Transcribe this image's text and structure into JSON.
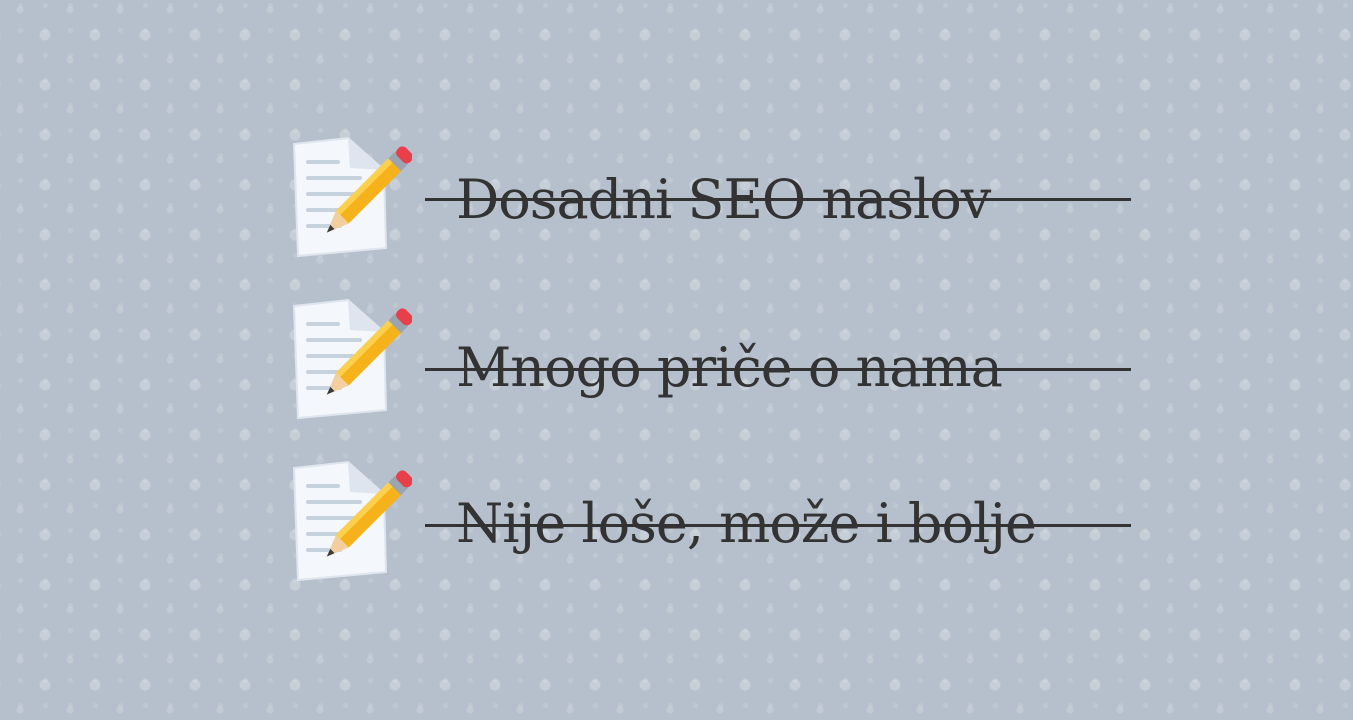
{
  "items": [
    {
      "icon": "memo-icon",
      "label": "Dosadni SEO naslov",
      "struck": true
    },
    {
      "icon": "memo-icon",
      "label": "Mnogo priče o nama",
      "struck": true
    },
    {
      "icon": "memo-icon",
      "label": "Nije loše, može i bolje",
      "struck": true
    }
  ]
}
